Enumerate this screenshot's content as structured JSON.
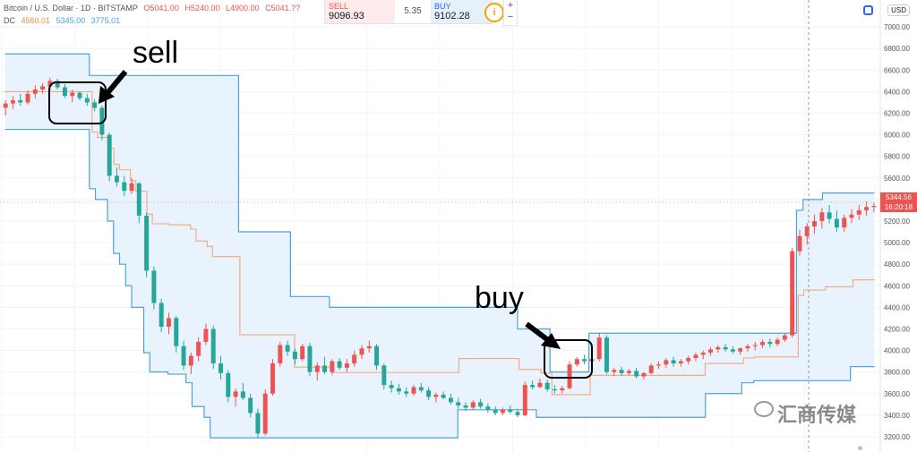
{
  "header": {
    "symbol": "Bitcoin / U.S. Dollar · 1D · BITSTAMP",
    "open": "O5041.00",
    "high": "H5240.00",
    "low": "L4900.00",
    "close": "C5041.??",
    "dc_label": "DC",
    "dc_lower": "4560.01",
    "dc_upper": "5345.00",
    "dc_basis": "3775.01"
  },
  "trade": {
    "sell_label": "SELL",
    "sell_price": "9096.93",
    "spread": "5.35",
    "buy_label": "BUY",
    "buy_price": "9102.28",
    "info_icon": "info-icon",
    "zoom_in": "+",
    "zoom_out": "−"
  },
  "price_axis": {
    "currency": "USD",
    "current_price": "5344.56",
    "countdown": "16:20:18"
  },
  "annotations": {
    "sell": "sell",
    "buy": "buy"
  },
  "watermark": "汇商传媒",
  "colors": {
    "up": "#ef5350",
    "down": "#26a69a",
    "channel": "#4aa3df",
    "channel_fill": "#e8f3fd",
    "basis": "#f4a77a",
    "box": "#000000"
  },
  "chart_data": {
    "type": "candlestick",
    "indicator": "Donchian Channels (DC)",
    "ylim": [
      3100,
      7200
    ],
    "y_ticks": [
      3200,
      3400,
      3600,
      3800,
      4000,
      4200,
      4400,
      4600,
      4800,
      5000,
      5200,
      5400,
      5600,
      5800,
      6000,
      6200,
      6400,
      6600,
      6800,
      7000
    ],
    "grid": true,
    "candles": [
      [
        6250,
        6320,
        6180,
        6290
      ],
      [
        6290,
        6360,
        6240,
        6320
      ],
      [
        6320,
        6380,
        6270,
        6300
      ],
      [
        6300,
        6410,
        6280,
        6380
      ],
      [
        6380,
        6460,
        6340,
        6420
      ],
      [
        6420,
        6480,
        6380,
        6450
      ],
      [
        6450,
        6530,
        6410,
        6500
      ],
      [
        6500,
        6520,
        6420,
        6440
      ],
      [
        6440,
        6470,
        6340,
        6360
      ],
      [
        6360,
        6420,
        6300,
        6390
      ],
      [
        6390,
        6400,
        6320,
        6340
      ],
      [
        6340,
        6380,
        6270,
        6300
      ],
      [
        6300,
        6330,
        6220,
        6250
      ],
      [
        6250,
        6270,
        5950,
        6000
      ],
      [
        6000,
        6020,
        5570,
        5620
      ],
      [
        5620,
        5700,
        5520,
        5560
      ],
      [
        5560,
        5620,
        5430,
        5480
      ],
      [
        5480,
        5600,
        5450,
        5550
      ],
      [
        5550,
        5560,
        5180,
        5250
      ],
      [
        5250,
        5280,
        4680,
        4740
      ],
      [
        4740,
        4780,
        4380,
        4440
      ],
      [
        4440,
        4480,
        4170,
        4220
      ],
      [
        4220,
        4350,
        4150,
        4300
      ],
      [
        4300,
        4320,
        3980,
        4040
      ],
      [
        4040,
        4090,
        3820,
        3860
      ],
      [
        3860,
        3980,
        3780,
        3950
      ],
      [
        3950,
        4120,
        3900,
        4080
      ],
      [
        4080,
        4250,
        4050,
        4200
      ],
      [
        4200,
        4230,
        3830,
        3880
      ],
      [
        3880,
        3950,
        3730,
        3790
      ],
      [
        3790,
        3820,
        3520,
        3570
      ],
      [
        3570,
        3650,
        3480,
        3620
      ],
      [
        3620,
        3700,
        3540,
        3560
      ],
      [
        3560,
        3600,
        3380,
        3420
      ],
      [
        3420,
        3460,
        3190,
        3230
      ],
      [
        3230,
        3640,
        3210,
        3600
      ],
      [
        3600,
        3920,
        3580,
        3880
      ],
      [
        3880,
        4080,
        3850,
        4050
      ],
      [
        4050,
        4090,
        3950,
        3990
      ],
      [
        3990,
        4020,
        3870,
        3920
      ],
      [
        3920,
        4060,
        3900,
        4040
      ],
      [
        4040,
        4070,
        3760,
        3800
      ],
      [
        3800,
        3890,
        3720,
        3860
      ],
      [
        3860,
        3940,
        3780,
        3800
      ],
      [
        3800,
        3920,
        3770,
        3900
      ],
      [
        3900,
        3930,
        3820,
        3840
      ],
      [
        3840,
        3920,
        3800,
        3880
      ],
      [
        3880,
        4000,
        3850,
        3960
      ],
      [
        3960,
        4050,
        3920,
        4020
      ],
      [
        4020,
        4090,
        3980,
        4040
      ],
      [
        4040,
        4060,
        3820,
        3860
      ],
      [
        3860,
        3880,
        3640,
        3680
      ],
      [
        3680,
        3720,
        3610,
        3650
      ],
      [
        3650,
        3690,
        3590,
        3620
      ],
      [
        3620,
        3660,
        3570,
        3600
      ],
      [
        3600,
        3680,
        3580,
        3660
      ],
      [
        3660,
        3700,
        3610,
        3630
      ],
      [
        3630,
        3660,
        3540,
        3570
      ],
      [
        3570,
        3610,
        3520,
        3590
      ],
      [
        3590,
        3620,
        3550,
        3560
      ],
      [
        3560,
        3600,
        3500,
        3520
      ],
      [
        3520,
        3560,
        3460,
        3490
      ],
      [
        3490,
        3520,
        3440,
        3470
      ],
      [
        3470,
        3540,
        3450,
        3520
      ],
      [
        3520,
        3550,
        3460,
        3480
      ],
      [
        3480,
        3510,
        3420,
        3450
      ],
      [
        3450,
        3480,
        3400,
        3420
      ],
      [
        3420,
        3470,
        3400,
        3450
      ],
      [
        3450,
        3490,
        3410,
        3430
      ],
      [
        3430,
        3460,
        3380,
        3400
      ],
      [
        3400,
        3710,
        3390,
        3680
      ],
      [
        3680,
        3720,
        3640,
        3660
      ],
      [
        3660,
        3740,
        3650,
        3700
      ],
      [
        3700,
        3730,
        3620,
        3640
      ],
      [
        3640,
        3680,
        3600,
        3630
      ],
      [
        3630,
        3670,
        3600,
        3650
      ],
      [
        3650,
        3900,
        3640,
        3870
      ],
      [
        3870,
        3940,
        3850,
        3920
      ],
      [
        3920,
        3960,
        3870,
        3900
      ],
      [
        3900,
        3940,
        3860,
        3920
      ],
      [
        3920,
        4160,
        3900,
        4120
      ],
      [
        4120,
        4140,
        3780,
        3800
      ],
      [
        3800,
        3840,
        3760,
        3820
      ],
      [
        3820,
        3850,
        3760,
        3790
      ],
      [
        3790,
        3830,
        3770,
        3810
      ],
      [
        3810,
        3840,
        3740,
        3760
      ],
      [
        3760,
        3800,
        3730,
        3790
      ],
      [
        3790,
        3880,
        3780,
        3860
      ],
      [
        3860,
        3900,
        3830,
        3870
      ],
      [
        3870,
        3930,
        3840,
        3910
      ],
      [
        3910,
        3940,
        3850,
        3880
      ],
      [
        3880,
        3920,
        3850,
        3900
      ],
      [
        3900,
        3950,
        3870,
        3930
      ],
      [
        3930,
        3980,
        3900,
        3960
      ],
      [
        3960,
        4000,
        3920,
        3980
      ],
      [
        3980,
        4030,
        3950,
        4010
      ],
      [
        4010,
        4050,
        3980,
        4030
      ],
      [
        4030,
        4060,
        3990,
        4010
      ],
      [
        4010,
        4040,
        3970,
        3990
      ],
      [
        3990,
        4030,
        3960,
        4020
      ],
      [
        4020,
        4060,
        3990,
        4040
      ],
      [
        4040,
        4080,
        4000,
        4050
      ],
      [
        4050,
        4100,
        4020,
        4080
      ],
      [
        4080,
        4110,
        4030,
        4060
      ],
      [
        4060,
        4120,
        4040,
        4100
      ],
      [
        4100,
        4160,
        4080,
        4140
      ],
      [
        4140,
        4950,
        4120,
        4920
      ],
      [
        4920,
        5120,
        4880,
        5060
      ],
      [
        5060,
        5180,
        4980,
        5150
      ],
      [
        5150,
        5260,
        5080,
        5200
      ],
      [
        5200,
        5320,
        5130,
        5280
      ],
      [
        5280,
        5350,
        5180,
        5220
      ],
      [
        5220,
        5300,
        5100,
        5140
      ],
      [
        5140,
        5260,
        5100,
        5230
      ],
      [
        5230,
        5310,
        5180,
        5260
      ],
      [
        5260,
        5350,
        5210,
        5300
      ],
      [
        5300,
        5380,
        5250,
        5330
      ],
      [
        5330,
        5370,
        5280,
        5341
      ]
    ],
    "channel_upper": [
      6750,
      6750,
      6750,
      6750,
      6750,
      6750,
      6750,
      6750,
      6750,
      6750,
      6750,
      6750,
      6750,
      6550,
      6550,
      6550,
      6550,
      6550,
      6550,
      6550,
      6550,
      6550,
      6550,
      6550,
      6550,
      6550,
      6550,
      6550,
      6550,
      6550,
      6550,
      6550,
      6550,
      6550,
      6550,
      6550,
      5100,
      5100,
      5100,
      5100,
      5100,
      5100,
      5100,
      5100,
      4500,
      4500,
      4500,
      4500,
      4500,
      4500,
      4400,
      4400,
      4400,
      4400,
      4400,
      4400,
      4400,
      4400,
      4400,
      4400,
      4400,
      4400,
      4400,
      4400,
      4400,
      4400,
      4400,
      4400,
      4400,
      4400,
      4400,
      4400,
      4400,
      4400,
      4400,
      4400,
      4400,
      4400,
      4400,
      4200,
      4200,
      4200,
      4200,
      4200,
      3800,
      3800,
      3800,
      3800,
      3800,
      3800,
      4160,
      4160,
      4160,
      4160,
      4160,
      4160,
      4160,
      4160,
      4160,
      4160,
      4160,
      4160,
      4160,
      4160,
      4160,
      4160,
      4160,
      4160,
      4160,
      4160,
      4160,
      4160,
      4160,
      4160,
      4160,
      4160,
      4160,
      4160,
      4160,
      4160,
      4160,
      4160,
      5300,
      5400,
      5400,
      5400,
      5460,
      5460,
      5460,
      5460,
      5460,
      5460,
      5460,
      5460,
      5460
    ],
    "channel_lower": [
      6050,
      6050,
      6050,
      6050,
      6050,
      6050,
      6050,
      6050,
      6050,
      6050,
      6050,
      6050,
      6050,
      6050,
      5500,
      5400,
      5400,
      5200,
      4900,
      4800,
      4600,
      4400,
      4400,
      3980,
      3800,
      3800,
      3800,
      3780,
      3780,
      3780,
      3700,
      3480,
      3480,
      3380,
      3190,
      3190,
      3190,
      3190,
      3190,
      3190,
      3190,
      3190,
      3190,
      3190,
      3190,
      3190,
      3190,
      3190,
      3190,
      3190,
      3190,
      3190,
      3190,
      3190,
      3190,
      3190,
      3190,
      3190,
      3190,
      3190,
      3190,
      3190,
      3190,
      3190,
      3190,
      3190,
      3190,
      3190,
      3190,
      3190,
      3190,
      3190,
      3190,
      3190,
      3190,
      3450,
      3450,
      3450,
      3450,
      3450,
      3450,
      3450,
      3450,
      3450,
      3450,
      3450,
      3450,
      3450,
      3380,
      3380,
      3380,
      3380,
      3380,
      3380,
      3380,
      3380,
      3380,
      3380,
      3380,
      3380,
      3380,
      3380,
      3380,
      3380,
      3380,
      3380,
      3380,
      3380,
      3380,
      3380,
      3380,
      3380,
      3380,
      3380,
      3380,
      3380,
      3600,
      3600,
      3600,
      3600,
      3600,
      3600,
      3700,
      3700,
      3720,
      3720,
      3720,
      3720,
      3720,
      3720,
      3720,
      3720,
      3720,
      3720,
      3720,
      3720,
      3720,
      3720,
      3720,
      3720,
      3850,
      3850,
      3850,
      3850,
      3850
    ]
  }
}
